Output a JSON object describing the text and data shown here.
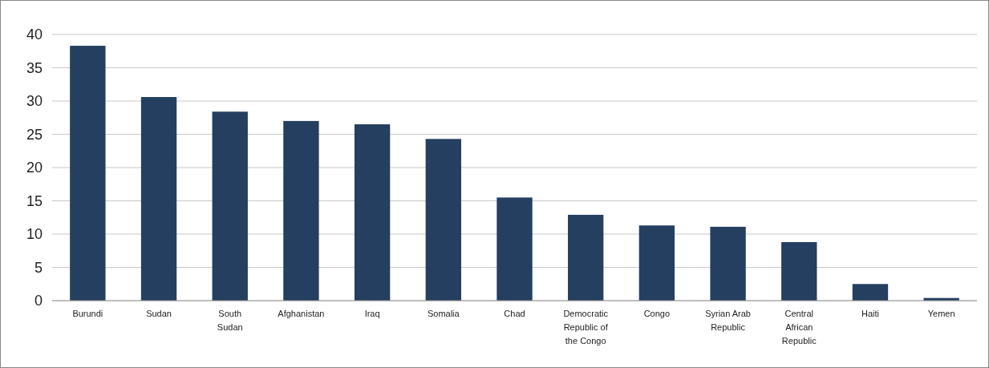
{
  "chart_data": {
    "type": "bar",
    "categories": [
      "Burundi",
      "Sudan",
      "South Sudan",
      "Afghanistan",
      "Iraq",
      "Somalia",
      "Chad",
      "Democratic Republic of the Congo",
      "Congo",
      "Syrian Arab Republic",
      "Central African Republic",
      "Haiti",
      "Yemen"
    ],
    "values": [
      38.3,
      30.6,
      28.4,
      27.0,
      26.5,
      24.3,
      15.5,
      12.9,
      11.3,
      11.1,
      8.8,
      2.5,
      0.4
    ],
    "color": "#243f60",
    "ylim": [
      0,
      40
    ],
    "yticks": [
      0,
      5,
      10,
      15,
      20,
      25,
      30,
      35,
      40
    ],
    "grid": "y"
  }
}
